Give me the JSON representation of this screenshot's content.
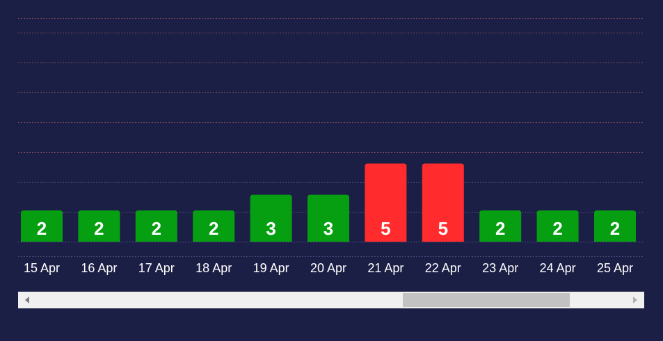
{
  "chart_data": {
    "type": "bar",
    "title": "",
    "xlabel": "",
    "ylabel": "",
    "ylim": [
      0,
      7.5
    ],
    "grid": true,
    "categories": [
      "15 Apr",
      "16 Apr",
      "17 Apr",
      "18 Apr",
      "19 Apr",
      "20 Apr",
      "21 Apr",
      "22 Apr",
      "23 Apr",
      "24 Apr",
      "25 Apr"
    ],
    "values": [
      2,
      2,
      2,
      2,
      3,
      3,
      5,
      5,
      2,
      2,
      2
    ],
    "bar_colors": [
      "#079f12",
      "#079f12",
      "#079f12",
      "#079f12",
      "#079f12",
      "#079f12",
      "#ff2b2d",
      "#ff2b2d",
      "#079f12",
      "#079f12",
      "#079f12"
    ],
    "colors": {
      "background": "#1c1f45",
      "grid": "#7a4a5c",
      "label": "#ffffff",
      "scrollbar_track": "#f0f0f0",
      "scrollbar_thumb": "#c2c2c2"
    }
  },
  "scrollbar": {
    "position": 0.7,
    "visible_fraction": 0.28,
    "left_arrow_icon": "triangle-left-icon",
    "right_arrow_icon": "triangle-right-icon"
  }
}
